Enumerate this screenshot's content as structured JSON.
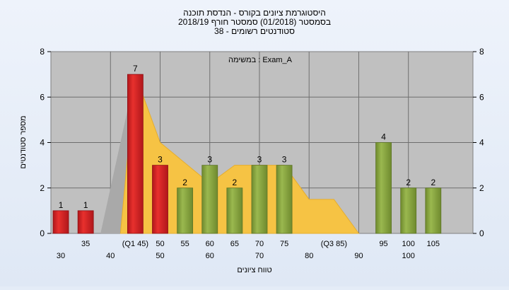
{
  "chart_data": {
    "type": "bar",
    "title_lines": [
      "היסטוגרמת ציונים בקורס - הנדסת תוכנה",
      "בסמסטר  (01/2018)  סמסטר חורף  2018/19",
      "סטודנטים רשומים - 38"
    ],
    "annotation": "במשימה : Exam_A",
    "ylabel": "מספר סטודנטים",
    "xlabel": "טווח ציונים",
    "ylim": [
      0,
      8
    ],
    "yticks": [
      "0",
      "2",
      "4",
      "6",
      "8"
    ],
    "x_labels_upper": [
      "35",
      "(Q1 45)",
      "50",
      "55",
      "60",
      "65",
      "70",
      "75",
      "(Q3 85)",
      "95",
      "100",
      "105"
    ],
    "x_labels_lower": [
      "30",
      "40",
      "50",
      "60",
      "70",
      "80",
      "90",
      "100"
    ],
    "bars": [
      {
        "x": 30,
        "value": 1,
        "label": "1",
        "color": "red"
      },
      {
        "x": 35,
        "value": 1,
        "label": "1",
        "color": "red"
      },
      {
        "x": 45,
        "value": 7,
        "label": "7",
        "color": "red"
      },
      {
        "x": 50,
        "value": 3,
        "label": "3",
        "color": "red"
      },
      {
        "x": 55,
        "value": 2,
        "label": "2",
        "color": "green"
      },
      {
        "x": 60,
        "value": 3,
        "label": "3",
        "color": "green"
      },
      {
        "x": 65,
        "value": 2,
        "label": "2",
        "color": "green"
      },
      {
        "x": 70,
        "value": 3,
        "label": "3",
        "color": "green"
      },
      {
        "x": 75,
        "value": 3,
        "label": "3",
        "color": "green"
      },
      {
        "x": 95,
        "value": 4,
        "label": "4",
        "color": "green"
      },
      {
        "x": 100,
        "value": 2,
        "label": "2",
        "color": "green"
      },
      {
        "x": 105,
        "value": 2,
        "label": "2",
        "color": "green"
      }
    ],
    "background_area": [
      {
        "x": 42,
        "y": 0
      },
      {
        "x": 45,
        "y": 7
      },
      {
        "x": 50,
        "y": 4
      },
      {
        "x": 60,
        "y": 2.2
      },
      {
        "x": 65,
        "y": 3
      },
      {
        "x": 70,
        "y": 3
      },
      {
        "x": 75,
        "y": 3
      },
      {
        "x": 80,
        "y": 1.5
      },
      {
        "x": 85,
        "y": 1.5
      },
      {
        "x": 90,
        "y": 0
      }
    ],
    "colors": {
      "plot_bg": "#c0c0c0",
      "bar_red": "#e8302d",
      "bar_green": "#9ab84f",
      "area": "#f6c344",
      "area_shade": "#a9a9a9"
    }
  }
}
